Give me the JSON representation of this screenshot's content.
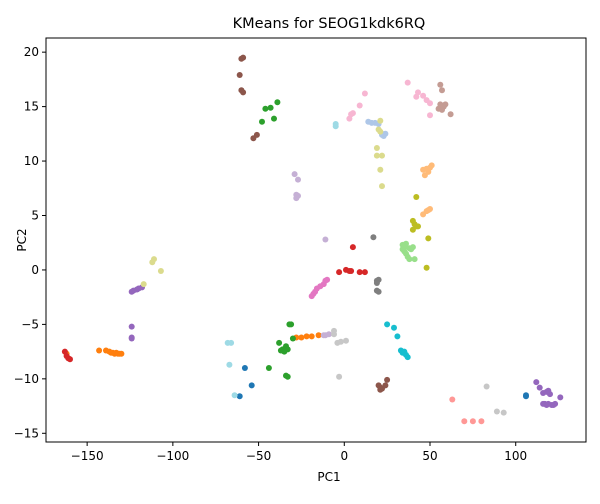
{
  "chart_data": {
    "type": "scatter",
    "title": "KMeans for SEOG1kdk6RQ",
    "xlabel": "PC1",
    "ylabel": "PC2",
    "xlim": [
      -174,
      141
    ],
    "ylim": [
      -15.8,
      21.3
    ],
    "xticks": [
      -150,
      -100,
      -50,
      0,
      50,
      100
    ],
    "yticks": [
      -15,
      -10,
      -5,
      0,
      5,
      10,
      15,
      20
    ],
    "legend": "none",
    "grid": false,
    "series": [
      {
        "color": "#1f77b4",
        "points": [
          [
            -58,
            -9.0
          ],
          [
            -54,
            -10.6
          ],
          [
            -61,
            -11.6
          ],
          [
            106,
            -11.5
          ],
          [
            106,
            -11.6
          ]
        ]
      },
      {
        "color": "#aec7e8",
        "points": [
          [
            14,
            13.6
          ],
          [
            16,
            13.5
          ],
          [
            18,
            13.5
          ],
          [
            20,
            13.4
          ],
          [
            22,
            12.5
          ],
          [
            23,
            12.3
          ],
          [
            24,
            12.5
          ],
          [
            22,
            12.4
          ]
        ]
      },
      {
        "color": "#ff7f0e",
        "points": [
          [
            -162,
            -7.7
          ],
          [
            -143,
            -7.4
          ],
          [
            -139,
            -7.4
          ],
          [
            -137,
            -7.5
          ],
          [
            -136,
            -7.6
          ],
          [
            -135,
            -7.6
          ],
          [
            -134,
            -7.7
          ],
          [
            -133,
            -7.6
          ],
          [
            -132,
            -7.7
          ],
          [
            -131,
            -7.7
          ],
          [
            -130,
            -7.7
          ],
          [
            -28,
            -6.2
          ],
          [
            -25,
            -6.2
          ],
          [
            -22,
            -6.1
          ],
          [
            -19,
            -6.1
          ],
          [
            -15,
            -6.0
          ]
        ]
      },
      {
        "color": "#ffbb78",
        "points": [
          [
            46,
            9.2
          ],
          [
            48,
            9.3
          ],
          [
            49,
            9.0
          ],
          [
            50,
            9.4
          ],
          [
            51,
            9.6
          ],
          [
            47,
            8.7
          ],
          [
            46,
            5.1
          ],
          [
            48,
            5.4
          ],
          [
            50,
            5.6
          ],
          [
            49,
            5.5
          ]
        ]
      },
      {
        "color": "#2ca02c",
        "points": [
          [
            -34,
            -7.0
          ],
          [
            -36,
            -7.3
          ],
          [
            -37,
            -7.4
          ],
          [
            -35,
            -7.5
          ],
          [
            -33,
            -7.3
          ],
          [
            -32,
            -5.0
          ],
          [
            -31,
            -5.0
          ],
          [
            -30,
            -6.3
          ],
          [
            -44,
            -9.0
          ],
          [
            -34,
            -9.7
          ],
          [
            -33,
            -9.8
          ],
          [
            -48,
            13.6
          ],
          [
            -46,
            14.8
          ],
          [
            -43,
            14.9
          ],
          [
            -41,
            13.9
          ],
          [
            -39,
            15.4
          ],
          [
            -38,
            -6.7
          ]
        ]
      },
      {
        "color": "#98df8a",
        "points": [
          [
            34,
            2.3
          ],
          [
            35,
            2.1
          ],
          [
            34,
            1.9
          ],
          [
            35,
            1.7
          ],
          [
            36,
            1.5
          ],
          [
            37,
            1.2
          ],
          [
            38,
            1.0
          ],
          [
            38,
            2.0
          ],
          [
            39,
            1.9
          ],
          [
            40,
            2.1
          ],
          [
            41,
            1.0
          ],
          [
            36,
            2.4
          ]
        ]
      },
      {
        "color": "#d62728",
        "points": [
          [
            -163,
            -7.5
          ],
          [
            -162,
            -7.9
          ],
          [
            -161,
            -8.1
          ],
          [
            -160,
            -8.2
          ],
          [
            -3,
            -0.2
          ],
          [
            1,
            0.0
          ],
          [
            3,
            -0.1
          ],
          [
            4,
            -0.1
          ],
          [
            9,
            -0.2
          ],
          [
            12,
            -0.2
          ],
          [
            5,
            2.1
          ]
        ]
      },
      {
        "color": "#ff9896",
        "points": [
          [
            63,
            -11.9
          ],
          [
            70,
            -13.9
          ],
          [
            75,
            -13.9
          ],
          [
            80,
            -13.9
          ]
        ]
      },
      {
        "color": "#9467bd",
        "points": [
          [
            -124,
            -2.0
          ],
          [
            -123,
            -1.9
          ],
          [
            -121,
            -1.8
          ],
          [
            -120,
            -1.7
          ],
          [
            -118,
            -1.6
          ],
          [
            -124,
            -5.2
          ],
          [
            -124,
            -6.2
          ],
          [
            -124,
            -6.3
          ],
          [
            112,
            -10.3
          ],
          [
            114,
            -10.8
          ],
          [
            116,
            -11.3
          ],
          [
            118,
            -11.2
          ],
          [
            119,
            -11.1
          ],
          [
            120,
            -11.4
          ],
          [
            117,
            -12.3
          ],
          [
            116,
            -12.3
          ],
          [
            118,
            -12.4
          ],
          [
            119,
            -12.3
          ],
          [
            121,
            -12.4
          ],
          [
            122,
            -12.4
          ],
          [
            123,
            -12.3
          ],
          [
            126,
            -11.7
          ]
        ]
      },
      {
        "color": "#c5b0d5",
        "points": [
          [
            -29,
            8.8
          ],
          [
            -27,
            8.3
          ],
          [
            -28,
            6.9
          ],
          [
            -27,
            6.8
          ],
          [
            -28,
            6.6
          ],
          [
            -11,
            2.8
          ],
          [
            -12,
            -6.0
          ],
          [
            -11,
            -6.0
          ],
          [
            -9,
            -5.9
          ]
        ]
      },
      {
        "color": "#8c564b",
        "points": [
          [
            -60,
            19.4
          ],
          [
            -59,
            19.5
          ],
          [
            -61,
            17.9
          ],
          [
            -60,
            16.5
          ],
          [
            -59,
            16.3
          ],
          [
            -53,
            12.1
          ],
          [
            -51,
            12.4
          ],
          [
            20,
            -10.6
          ],
          [
            21,
            -10.8
          ],
          [
            22,
            -10.9
          ],
          [
            24,
            -10.6
          ],
          [
            25,
            -10.1
          ],
          [
            21,
            -11.0
          ]
        ]
      },
      {
        "color": "#c49c94",
        "points": [
          [
            56,
            17.0
          ],
          [
            57,
            16.5
          ],
          [
            56,
            15.2
          ],
          [
            55,
            14.8
          ],
          [
            57,
            14.7
          ],
          [
            58,
            15.0
          ],
          [
            59,
            15.2
          ],
          [
            62,
            14.3
          ]
        ]
      },
      {
        "color": "#e377c2",
        "points": [
          [
            -19,
            -2.4
          ],
          [
            -18,
            -2.2
          ],
          [
            -17,
            -2.0
          ],
          [
            -16,
            -1.7
          ],
          [
            -14,
            -1.5
          ],
          [
            -12,
            -1.3
          ],
          [
            -11,
            -1.0
          ],
          [
            -10,
            -0.9
          ]
        ]
      },
      {
        "color": "#f7b6d2",
        "points": [
          [
            3,
            13.9
          ],
          [
            4,
            14.3
          ],
          [
            5,
            14.4
          ],
          [
            9,
            15.1
          ],
          [
            12,
            16.2
          ],
          [
            37,
            17.2
          ],
          [
            42,
            15.9
          ],
          [
            43,
            16.3
          ],
          [
            46,
            16.0
          ],
          [
            48,
            15.6
          ],
          [
            50,
            15.3
          ],
          [
            50,
            14.2
          ]
        ]
      },
      {
        "color": "#7f7f7f",
        "points": [
          [
            17,
            3.0
          ],
          [
            19,
            -1.0
          ],
          [
            20,
            -0.9
          ],
          [
            19,
            -1.9
          ],
          [
            20,
            -2.0
          ],
          [
            19,
            -1.2
          ]
        ]
      },
      {
        "color": "#c7c7c7",
        "points": [
          [
            -6,
            -5.9
          ],
          [
            -6,
            -5.6
          ],
          [
            -4,
            -6.7
          ],
          [
            -2,
            -6.6
          ],
          [
            1,
            -6.5
          ],
          [
            -3,
            -9.8
          ],
          [
            83,
            -10.7
          ],
          [
            89,
            -13.0
          ],
          [
            93,
            -13.1
          ]
        ]
      },
      {
        "color": "#bcbd22",
        "points": [
          [
            40,
            4.5
          ],
          [
            41,
            4.2
          ],
          [
            42,
            4.0
          ],
          [
            43,
            4.0
          ],
          [
            40,
            3.7
          ],
          [
            42,
            6.7
          ],
          [
            49,
            2.9
          ],
          [
            48,
            0.2
          ]
        ]
      },
      {
        "color": "#dbdb8d",
        "points": [
          [
            -111,
            1.0
          ],
          [
            -112,
            0.7
          ],
          [
            -107,
            -0.1
          ],
          [
            -117,
            -1.3
          ],
          [
            19,
            11.2
          ],
          [
            19,
            10.5
          ],
          [
            22,
            10.5
          ],
          [
            20,
            12.9
          ],
          [
            21,
            13.7
          ],
          [
            21,
            9.2
          ],
          [
            22,
            7.7
          ],
          [
            21,
            12.7
          ]
        ]
      },
      {
        "color": "#17becf",
        "points": [
          [
            25,
            -5.0
          ],
          [
            29,
            -5.3
          ],
          [
            31,
            -6.1
          ],
          [
            33,
            -7.4
          ],
          [
            34,
            -7.6
          ],
          [
            35,
            -7.5
          ],
          [
            36,
            -7.8
          ],
          [
            37,
            -8.0
          ]
        ]
      },
      {
        "color": "#9edae5",
        "points": [
          [
            -5,
            13.4
          ],
          [
            -5,
            13.2
          ],
          [
            -68,
            -6.7
          ],
          [
            -66,
            -6.7
          ],
          [
            -67,
            -8.7
          ],
          [
            -64,
            -11.5
          ]
        ]
      }
    ]
  }
}
